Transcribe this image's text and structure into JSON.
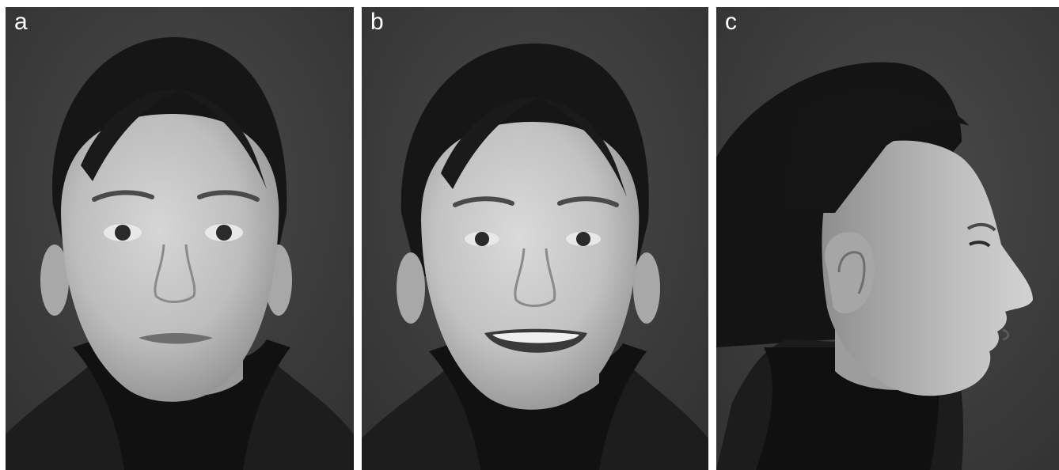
{
  "figure": {
    "panels": [
      {
        "letter": "a",
        "subject": "frontal-neutral-face"
      },
      {
        "letter": "b",
        "subject": "frontal-smiling-face"
      },
      {
        "letter": "c",
        "subject": "right-profile-face"
      }
    ],
    "colors": {
      "background": "#3e3e3e",
      "hair": "#151515",
      "skin": "#b9b9b9",
      "clothing": "#1c1c1c",
      "letter": "#ffffff"
    }
  }
}
